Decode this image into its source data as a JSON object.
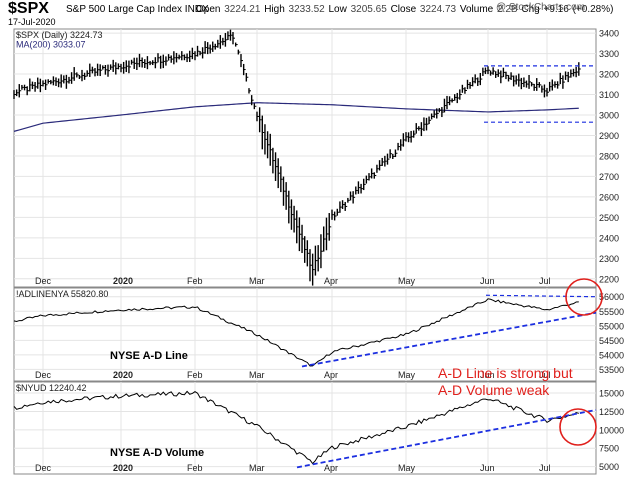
{
  "header": {
    "symbol": "$SPX",
    "name": "S&P 500 Large Cap Index",
    "exchange": "INDX",
    "date": "17-Jul-2020",
    "open_label": "Open",
    "open": "3224.21",
    "high_label": "High",
    "high": "3233.52",
    "low_label": "Low",
    "low": "3205.65",
    "close_label": "Close",
    "close": "3224.73",
    "volume_label": "Volume",
    "volume": "2.2B",
    "chg_label": "Chg",
    "chg": "+9.16 (+0.28%)",
    "watermark": "@ StockCharts.com"
  },
  "colors": {
    "price": "#000000",
    "ma": "#2a2a7a",
    "trend": "#1c2fe0",
    "circle": "#e0201c",
    "annotation": "#e0201c",
    "grid": "#e4e4e4",
    "axis": "#888888"
  },
  "chart_data": [
    {
      "type": "line",
      "legend": [
        "$SPX (Daily) 3224.73",
        "MA(200) 3033.07"
      ],
      "x_ticks": [
        "Dec",
        "2020",
        "Feb",
        "Mar",
        "Apr",
        "May",
        "Jun",
        "Jul"
      ],
      "y_ticks": [
        2200,
        2300,
        2400,
        2500,
        2600,
        2700,
        2800,
        2900,
        3000,
        3100,
        3200,
        3300,
        3400
      ],
      "ylim": [
        2160,
        3420
      ],
      "price_series_monthly": [
        {
          "x": "Nov",
          "y": 3110
        },
        {
          "x": "Dec",
          "y": 3150
        },
        {
          "x": "2020",
          "y": 3240
        },
        {
          "x": "Feb",
          "y": 3300
        },
        {
          "x": "Feb-19",
          "y": 3386
        },
        {
          "x": "Mar",
          "y": 3000
        },
        {
          "x": "Mar-23",
          "y": 2237
        },
        {
          "x": "Apr",
          "y": 2500
        },
        {
          "x": "May",
          "y": 2880
        },
        {
          "x": "Jun",
          "y": 3220
        },
        {
          "x": "Jul",
          "y": 3120
        },
        {
          "x": "Jul-17",
          "y": 3224.73
        }
      ],
      "ma200_series_monthly": [
        {
          "x": "Nov",
          "y": 2920
        },
        {
          "x": "Dec",
          "y": 2960
        },
        {
          "x": "2020",
          "y": 3000
        },
        {
          "x": "Feb",
          "y": 3040
        },
        {
          "x": "Mar",
          "y": 3060
        },
        {
          "x": "Apr",
          "y": 3050
        },
        {
          "x": "May",
          "y": 3030
        },
        {
          "x": "Jun",
          "y": 3015
        },
        {
          "x": "Jul",
          "y": 3025
        },
        {
          "x": "Jul-17",
          "y": 3033.07
        }
      ],
      "range_lines": [
        3240,
        2965
      ]
    },
    {
      "type": "line",
      "legend": [
        "!ADLINENYA 55820.80"
      ],
      "label": "NYSE A-D Line",
      "x_ticks": [
        "Dec",
        "2020",
        "Feb",
        "Mar",
        "Apr",
        "May",
        "Jun",
        "Jul"
      ],
      "y_ticks": [
        53500,
        54000,
        54500,
        55000,
        55500,
        56000
      ],
      "ylim": [
        53100,
        56300
      ],
      "series_monthly": [
        {
          "x": "Nov",
          "y": 55150
        },
        {
          "x": "Dec",
          "y": 55350
        },
        {
          "x": "2020",
          "y": 55550
        },
        {
          "x": "Feb",
          "y": 55650
        },
        {
          "x": "Mar",
          "y": 54700
        },
        {
          "x": "Mar-23",
          "y": 53600
        },
        {
          "x": "Apr",
          "y": 54100
        },
        {
          "x": "May",
          "y": 54700
        },
        {
          "x": "Jun",
          "y": 55900
        },
        {
          "x": "Jul",
          "y": 55550
        },
        {
          "x": "Jul-17",
          "y": 55820.8
        }
      ]
    },
    {
      "type": "line",
      "legend": [
        "$NYUD 12240.42"
      ],
      "label": "NYSE A-D Volume",
      "x_ticks": [
        "Dec",
        "2020",
        "Feb",
        "Mar",
        "Apr",
        "May",
        "Jun",
        "Jul"
      ],
      "y_ticks": [
        5000,
        7500,
        10000,
        12500,
        15000
      ],
      "ylim": [
        4000,
        16500
      ],
      "series_monthly": [
        {
          "x": "Nov",
          "y": 13000
        },
        {
          "x": "Dec",
          "y": 13800
        },
        {
          "x": "2020",
          "y": 14600
        },
        {
          "x": "Feb",
          "y": 15000
        },
        {
          "x": "Mar",
          "y": 10500
        },
        {
          "x": "Mar-23",
          "y": 5600
        },
        {
          "x": "Apr",
          "y": 7600
        },
        {
          "x": "May",
          "y": 10400
        },
        {
          "x": "Jun",
          "y": 14300
        },
        {
          "x": "Jul",
          "y": 11300
        },
        {
          "x": "Jul-17",
          "y": 12240.42
        }
      ]
    }
  ],
  "annotation": {
    "line1": "A-D Line is strong but",
    "line2": "A-D Volume weak"
  }
}
